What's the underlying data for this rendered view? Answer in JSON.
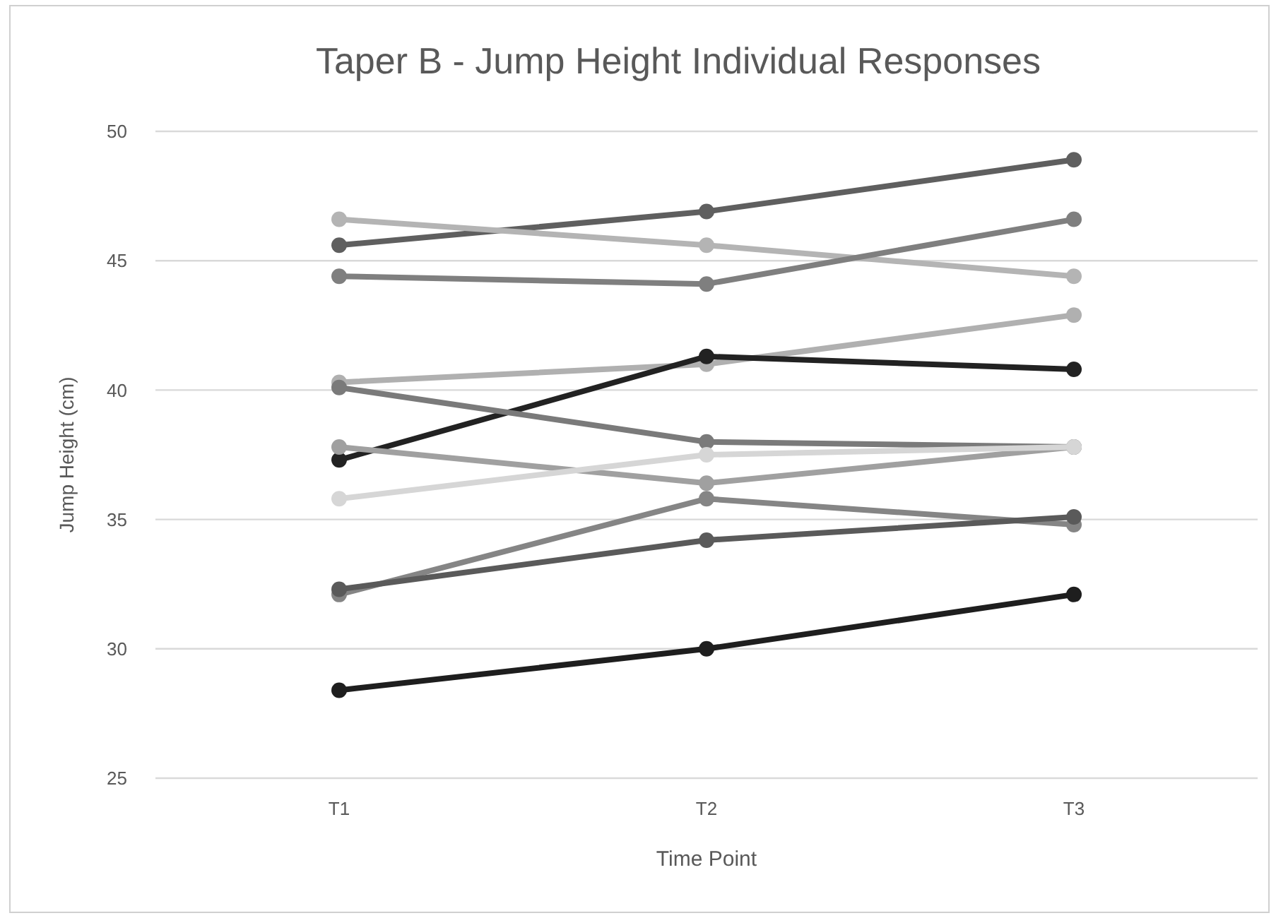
{
  "chart_data": {
    "type": "line",
    "title": "Taper B - Jump Height Individual Responses",
    "xlabel": "Time Point",
    "ylabel": "Jump Height (cm)",
    "categories": [
      "T1",
      "T2",
      "T3"
    ],
    "series": [
      {
        "color": "#5f5f5f",
        "values": [
          45.6,
          46.9,
          48.9
        ]
      },
      {
        "color": "#b4b4b4",
        "values": [
          46.6,
          45.6,
          44.4
        ]
      },
      {
        "color": "#7f7f7f",
        "values": [
          44.4,
          44.1,
          46.6
        ]
      },
      {
        "color": "#b0b0b0",
        "values": [
          40.3,
          41.0,
          42.9
        ]
      },
      {
        "color": "#222222",
        "values": [
          37.3,
          41.3,
          40.8
        ]
      },
      {
        "color": "#7a7a7a",
        "values": [
          40.1,
          38.0,
          37.8
        ]
      },
      {
        "color": "#a0a0a0",
        "values": [
          37.8,
          36.4,
          37.8
        ]
      },
      {
        "color": "#d6d6d6",
        "values": [
          35.8,
          37.5,
          37.8
        ]
      },
      {
        "color": "#858585",
        "values": [
          32.1,
          35.8,
          34.8
        ]
      },
      {
        "color": "#5a5a5a",
        "values": [
          32.3,
          34.2,
          35.1
        ]
      },
      {
        "color": "#1e1e1e",
        "values": [
          28.4,
          30.0,
          32.1
        ]
      }
    ],
    "ylim": [
      25,
      50
    ],
    "yticks": [
      25,
      30,
      35,
      40,
      45,
      50
    ],
    "grid": "y",
    "marker": "circle",
    "line_style": "solid"
  }
}
